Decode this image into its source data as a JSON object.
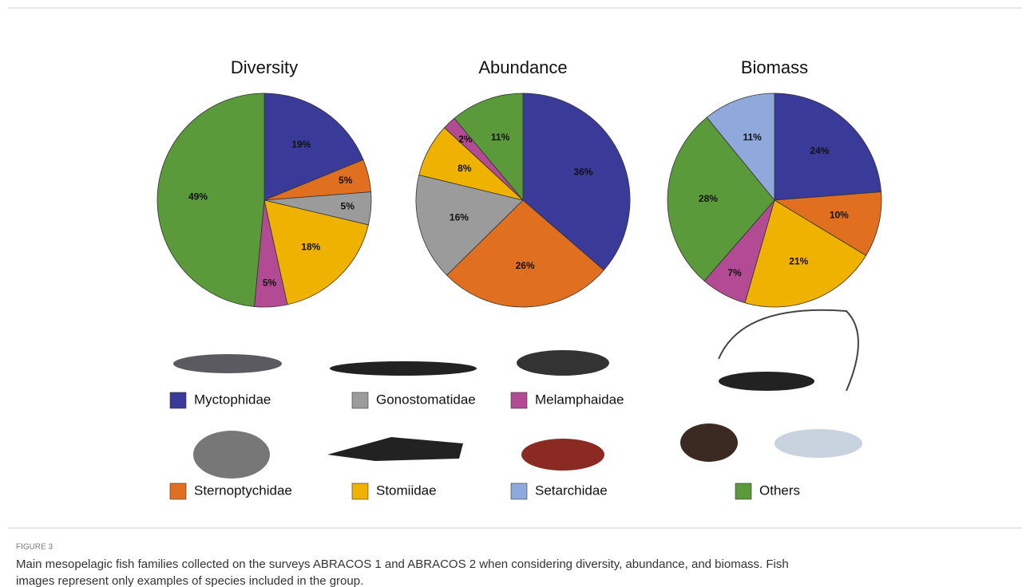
{
  "chart_data": [
    {
      "type": "pie",
      "title": "Diversity",
      "categories": [
        "Myctophidae",
        "Sternoptychidae",
        "Gonostomatidae",
        "Stomiidae",
        "Melamphaidae",
        "Others"
      ],
      "values": [
        19,
        5,
        5,
        18,
        5,
        49
      ],
      "value_labels": [
        "19%",
        "5%",
        "5%",
        "18%",
        "5%",
        "49%"
      ]
    },
    {
      "type": "pie",
      "title": "Abundance",
      "categories": [
        "Myctophidae",
        "Sternoptychidae",
        "Gonostomatidae",
        "Stomiidae",
        "Melamphaidae",
        "Others"
      ],
      "values": [
        36,
        26,
        16,
        8,
        2,
        11
      ],
      "value_labels": [
        "36%",
        "26%",
        "16%",
        "8%",
        "2%",
        "11%"
      ]
    },
    {
      "type": "pie",
      "title": "Biomass",
      "categories": [
        "Myctophidae",
        "Sternoptychidae",
        "Stomiidae",
        "Melamphaidae",
        "Others",
        "Setarchidae"
      ],
      "values": [
        24,
        10,
        21,
        7,
        28,
        11
      ],
      "value_labels": [
        "24%",
        "10%",
        "21%",
        "7%",
        "28%",
        "11%"
      ]
    }
  ],
  "legend": [
    {
      "name": "Myctophidae",
      "color": "#3a3a98"
    },
    {
      "name": "Gonostomatidae",
      "color": "#9b9b9b"
    },
    {
      "name": "Melamphaidae",
      "color": "#b24b93"
    },
    {
      "name": "Sternoptychidae",
      "color": "#e0701f"
    },
    {
      "name": "Stomiidae",
      "color": "#f0b200"
    },
    {
      "name": "Setarchidae",
      "color": "#8fa9dd"
    },
    {
      "name": "Others",
      "color": "#5b9a3a"
    }
  ],
  "figure_label": "FIGURE 3",
  "caption": [
    "Main mesopelagic fish families collected on the surveys ABRACOS 1 and ABRACOS 2 when considering diversity, abundance, and biomass. Fish",
    "images represent only examples of species included in the group."
  ]
}
